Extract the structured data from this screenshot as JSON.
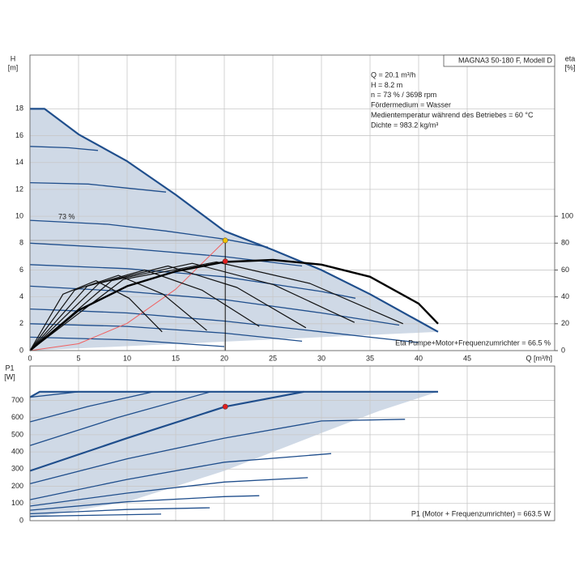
{
  "chart_data": [
    {
      "type": "pump-head",
      "title": "MAGNA3 50-180 F, Modell D",
      "ylabel": "H",
      "yunit": "[m]",
      "y2label": "eta",
      "y2unit": "[%]",
      "xlabel": "Q [m³/h]",
      "info": [
        "Q = 20.1 m³/h",
        "H = 8.2 m",
        "n = 73 % / 3698 rpm",
        "Fördermedium = Wasser",
        "Medientemperatur während des Betriebes = 60 °C",
        "Dichte = 983.2 kg/m³"
      ],
      "curve_label": "73 %",
      "footnote": "Eta Pumpe+Motor+Frequenzumrichter = 66.5 %",
      "xlim": [
        0,
        54
      ],
      "xticks": [
        0,
        5,
        10,
        15,
        20,
        25,
        30,
        35,
        40,
        45
      ],
      "xtick_labels": true,
      "ylim": [
        0,
        22
      ],
      "yticks": [
        0,
        2,
        4,
        6,
        8,
        10,
        12,
        14,
        16,
        18
      ],
      "y2lim": [
        0,
        220
      ],
      "y2ticks": [
        0,
        20,
        40,
        60,
        80,
        100
      ],
      "grid": true,
      "series": [
        {
          "x": [
            0,
            1.5,
            5,
            10,
            15,
            20,
            25,
            30,
            35,
            40,
            42,
            42,
            0
          ],
          "values": [
            18,
            18,
            16.1,
            14.1,
            11.6,
            8.9,
            7.5,
            6.0,
            4.2,
            2.2,
            1.4,
            1.4,
            0
          ],
          "fill": "#cfd9e6"
        },
        {
          "x": [
            0,
            4,
            7
          ],
          "values": [
            15.2,
            15.1,
            14.9
          ],
          "color": "#1f4e8c",
          "width": 1.3
        },
        {
          "x": [
            0,
            6,
            10,
            14
          ],
          "values": [
            12.5,
            12.4,
            12.1,
            11.8
          ],
          "color": "#1f4e8c",
          "width": 1.3
        },
        {
          "x": [
            0,
            8,
            14,
            20,
            24.5
          ],
          "values": [
            9.7,
            9.4,
            8.9,
            8.3,
            7.7
          ],
          "color": "#1f4e8c",
          "width": 1.3
        },
        {
          "x": [
            0,
            10,
            20,
            28
          ],
          "values": [
            8.0,
            7.6,
            7.0,
            6.3
          ],
          "color": "#1f4e8c",
          "width": 1.3
        },
        {
          "x": [
            0,
            10,
            20,
            30,
            33.5
          ],
          "values": [
            6.4,
            6.1,
            5.5,
            4.4,
            3.9
          ],
          "color": "#1f4e8c",
          "width": 1.3
        },
        {
          "x": [
            0,
            10,
            20,
            30,
            38
          ],
          "values": [
            4.8,
            4.4,
            3.8,
            2.8,
            1.9
          ],
          "color": "#1f4e8c",
          "width": 1.3
        },
        {
          "x": [
            0,
            10,
            20,
            30,
            40
          ],
          "values": [
            3.1,
            2.8,
            2.2,
            1.4,
            0.6
          ],
          "color": "#1f4e8c",
          "width": 1.3
        },
        {
          "x": [
            0,
            10,
            20,
            28
          ],
          "values": [
            2.0,
            1.8,
            1.3,
            0.7
          ],
          "color": "#1f4e8c",
          "width": 1.3
        },
        {
          "x": [
            0,
            10,
            20
          ],
          "values": [
            1.0,
            0.8,
            0.3
          ],
          "color": "#1f4e8c",
          "width": 1.3
        },
        {
          "x": [
            0,
            1.5,
            5,
            10,
            15,
            20,
            25,
            30,
            35,
            40,
            42
          ],
          "values": [
            18,
            18,
            16.1,
            14.1,
            11.6,
            8.9,
            7.5,
            6.0,
            4.2,
            2.2,
            1.4
          ],
          "color": "#1f4e8c",
          "width": 2.2
        },
        {
          "x": [
            0,
            5,
            10,
            15,
            20.1
          ],
          "values": [
            0,
            0.51,
            2.03,
            4.57,
            8.2
          ],
          "color": "#f06060",
          "width": 1
        },
        {
          "x": [
            0,
            3.4,
            6.8,
            10.2,
            13.6
          ],
          "values": [
            0,
            42,
            52,
            39,
            14
          ],
          "color": "#111111",
          "width": 1.2,
          "axis": "y2"
        },
        {
          "x": [
            0,
            4.6,
            9.1,
            13.7,
            18.2
          ],
          "values": [
            0,
            45,
            56,
            42,
            15
          ],
          "color": "#111111",
          "width": 1.2,
          "axis": "y2"
        },
        {
          "x": [
            0,
            5.9,
            11.8,
            17.7,
            23.6
          ],
          "values": [
            0,
            48,
            60,
            45,
            18
          ],
          "color": "#111111",
          "width": 1.2,
          "axis": "y2"
        },
        {
          "x": [
            0,
            7.1,
            14.2,
            21.3,
            28.4
          ],
          "values": [
            0,
            50,
            63,
            47,
            17
          ],
          "color": "#111111",
          "width": 1.2,
          "axis": "y2"
        },
        {
          "x": [
            0,
            8.4,
            16.7,
            25.1,
            33.4
          ],
          "values": [
            0,
            52,
            65,
            49,
            21
          ],
          "color": "#111111",
          "width": 1.2,
          "axis": "y2"
        },
        {
          "x": [
            0,
            9.6,
            19.2,
            28.8,
            38.4
          ],
          "values": [
            0,
            53,
            66,
            50,
            20
          ],
          "color": "#111111",
          "width": 1.2,
          "axis": "y2"
        },
        {
          "x": [
            0,
            5,
            10,
            15,
            20,
            25,
            30,
            35,
            40,
            42
          ],
          "values": [
            0,
            30,
            48,
            59,
            66,
            67.5,
            64,
            55,
            35,
            20
          ],
          "color": "#000000",
          "width": 2.4,
          "axis": "y2"
        }
      ],
      "points": [
        {
          "x": 20.1,
          "y": 8.2,
          "color": "#f2c200",
          "guide": true
        },
        {
          "x": 20.1,
          "y": 66.5,
          "axis": "y2",
          "color": "#e02020"
        }
      ]
    },
    {
      "type": "pump-power",
      "ylabel": "P1",
      "yunit": "[W]",
      "footnote": "P1 (Motor + Frequenzumrichter) = 663.5 W",
      "xlim": [
        0,
        54
      ],
      "xticks": [
        0,
        5,
        10,
        15,
        20,
        25,
        30,
        35,
        40,
        45
      ],
      "xtick_labels": false,
      "ylim": [
        0,
        900
      ],
      "yticks": [
        0,
        100,
        200,
        300,
        400,
        500,
        600,
        700
      ],
      "grid": true,
      "series": [
        {
          "x": [
            0,
            1,
            42,
            36,
            30,
            20,
            10,
            0
          ],
          "values": [
            718,
            750,
            750,
            640,
            510,
            290,
            110,
            15
          ],
          "fill": "#cfd9e6"
        },
        {
          "x": [
            0,
            5
          ],
          "values": [
            718,
            750
          ],
          "color": "#1f4e8c",
          "width": 1.3
        },
        {
          "x": [
            0,
            6,
            12.7
          ],
          "values": [
            575,
            665,
            750
          ],
          "color": "#1f4e8c",
          "width": 1.3
        },
        {
          "x": [
            0,
            9,
            18.6
          ],
          "values": [
            437,
            600,
            750
          ],
          "color": "#1f4e8c",
          "width": 1.3
        },
        {
          "x": [
            0,
            10,
            20,
            30,
            38.6
          ],
          "values": [
            215,
            360,
            480,
            580,
            590
          ],
          "color": "#1f4e8c",
          "width": 1.3
        },
        {
          "x": [
            0,
            10,
            20,
            31
          ],
          "values": [
            122,
            240,
            340,
            390
          ],
          "color": "#1f4e8c",
          "width": 1.3
        },
        {
          "x": [
            0,
            10,
            20,
            28.6
          ],
          "values": [
            85,
            160,
            225,
            250
          ],
          "color": "#1f4e8c",
          "width": 1.3
        },
        {
          "x": [
            0,
            10,
            20,
            23.6
          ],
          "values": [
            61,
            110,
            140,
            145
          ],
          "color": "#1f4e8c",
          "width": 1.3
        },
        {
          "x": [
            0,
            10,
            18.5
          ],
          "values": [
            40,
            65,
            75
          ],
          "color": "#1f4e8c",
          "width": 1.3
        },
        {
          "x": [
            0,
            10,
            13.5
          ],
          "values": [
            25,
            35,
            38
          ],
          "color": "#1f4e8c",
          "width": 1.3
        },
        {
          "x": [
            0,
            10,
            20.1,
            28.2
          ],
          "values": [
            290,
            480,
            663.5,
            750
          ],
          "color": "#1f4e8c",
          "width": 2.2
        },
        {
          "x": [
            0,
            1,
            42
          ],
          "values": [
            718,
            750,
            750
          ],
          "color": "#1f4e8c",
          "width": 2.2
        }
      ],
      "points": [
        {
          "x": 20.1,
          "y": 663.5,
          "color": "#e02020"
        }
      ]
    }
  ]
}
